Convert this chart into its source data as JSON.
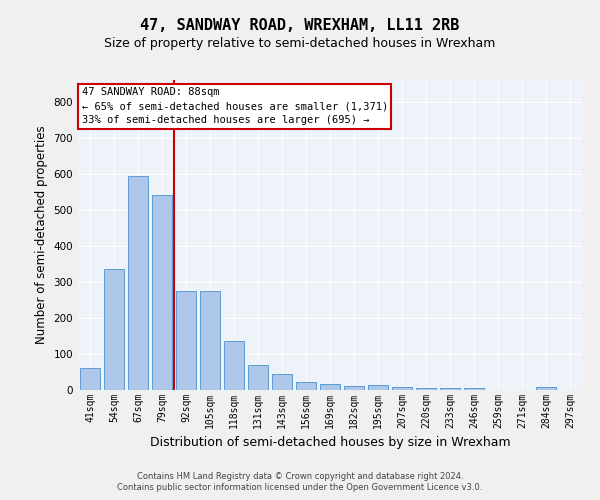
{
  "title": "47, SANDWAY ROAD, WREXHAM, LL11 2RB",
  "subtitle": "Size of property relative to semi-detached houses in Wrexham",
  "xlabel": "Distribution of semi-detached houses by size in Wrexham",
  "ylabel": "Number of semi-detached properties",
  "footer_line1": "Contains HM Land Registry data © Crown copyright and database right 2024.",
  "footer_line2": "Contains public sector information licensed under the Open Government Licence v3.0.",
  "bar_labels": [
    "41sqm",
    "54sqm",
    "67sqm",
    "79sqm",
    "92sqm",
    "105sqm",
    "118sqm",
    "131sqm",
    "143sqm",
    "156sqm",
    "169sqm",
    "182sqm",
    "195sqm",
    "207sqm",
    "220sqm",
    "233sqm",
    "246sqm",
    "259sqm",
    "271sqm",
    "284sqm",
    "297sqm"
  ],
  "bar_values": [
    60,
    335,
    595,
    540,
    275,
    275,
    135,
    68,
    45,
    22,
    18,
    12,
    13,
    8,
    6,
    5,
    5,
    0,
    0,
    8,
    0
  ],
  "bar_color": "#aec6e8",
  "bar_edge_color": "#5b9bd5",
  "annotation_title": "47 SANDWAY ROAD: 88sqm",
  "annotation_line1": "← 65% of semi-detached houses are smaller (1,371)",
  "annotation_line2": "33% of semi-detached houses are larger (695) →",
  "annotation_box_color": "#ffffff",
  "annotation_box_edge": "#cc0000",
  "line_color": "#cc0000",
  "ylim": [
    0,
    860
  ],
  "yticks": [
    0,
    100,
    200,
    300,
    400,
    500,
    600,
    700,
    800
  ],
  "background_color": "#eef3fa",
  "grid_color": "#ffffff",
  "fig_background": "#f0f0f0",
  "title_fontsize": 11,
  "subtitle_fontsize": 9,
  "axis_label_fontsize": 8.5,
  "tick_fontsize": 7
}
